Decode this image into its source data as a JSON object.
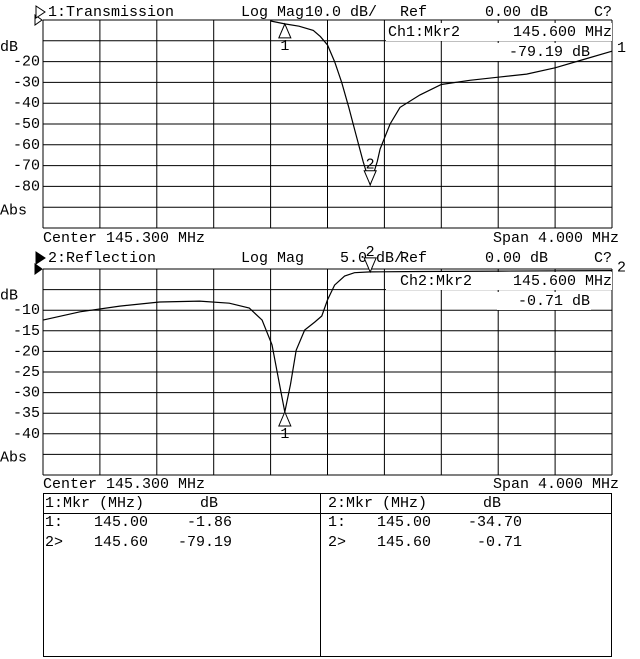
{
  "chart_data": [
    {
      "type": "line",
      "channel_label": "1:Transmission",
      "format": "Log Mag",
      "scale": "10.0 dB/",
      "ref_label": "Ref",
      "ref": "0.00 dB",
      "status": "C?",
      "readout": {
        "name": "Ch1:Mkr2",
        "frequency": "145.600 MHz",
        "value": "-79.19 dB"
      },
      "center_label": "Center 145.300 MHz",
      "span_label": "Span 4.000 MHz",
      "ylabel": "dB",
      "ylabel_bottom": "Abs",
      "xlim": [
        143.3,
        147.3
      ],
      "ylim": [
        -100,
        0
      ],
      "yticks": [
        {
          "value": 0,
          "label": null
        },
        {
          "value": -10,
          "label": null
        },
        -20,
        -30,
        -40,
        -50,
        -60,
        -70,
        -80,
        {
          "value": -90,
          "label": null
        },
        {
          "value": -100,
          "label": null
        }
      ],
      "grid": true,
      "series": [
        {
          "name": "1",
          "color": "#000000",
          "x": [
            144.9,
            145.0,
            145.1,
            145.2,
            145.25,
            145.3,
            145.35,
            145.4,
            145.45,
            145.5,
            145.55,
            145.6,
            145.65,
            145.67,
            145.74,
            145.81,
            145.95,
            146.1,
            146.3,
            146.5,
            146.7,
            146.9,
            147.1,
            147.3
          ],
          "values": [
            -0.5,
            -1.86,
            -3,
            -5,
            -8,
            -12,
            -20,
            -30,
            -42,
            -55,
            -68,
            -79.19,
            -68,
            -62,
            -50,
            -42,
            -36,
            -31,
            -29,
            -27.5,
            -26,
            -23,
            -19,
            -15
          ]
        }
      ],
      "markers": [
        {
          "label": "1",
          "x": 145.0,
          "value": -1.86
        },
        {
          "label": "2",
          "x": 145.6,
          "value": -79.19
        }
      ]
    },
    {
      "type": "line",
      "channel_label": "2:Reflection",
      "format": "Log Mag",
      "scale": "5.0 dB/",
      "ref_label": "Ref",
      "ref": "0.00 dB",
      "status": "C?",
      "readout": {
        "name": "Ch2:Mkr2",
        "frequency": "145.600 MHz",
        "value": "-0.71 dB"
      },
      "center_label": "Center 145.300 MHz",
      "span_label": "Span 4.000 MHz",
      "ylabel": "dB",
      "ylabel_bottom": "Abs",
      "xlim": [
        143.3,
        147.3
      ],
      "ylim": [
        -50,
        0
      ],
      "yticks": [
        {
          "value": 0,
          "label": null
        },
        {
          "value": -5,
          "label": null
        },
        -10,
        -15,
        -20,
        -25,
        -30,
        -35,
        -40,
        {
          "value": -45,
          "label": null
        },
        {
          "value": -50,
          "label": null
        }
      ],
      "grid": true,
      "series": [
        {
          "name": "2",
          "color": "#000000",
          "x": [
            143.3,
            143.56,
            143.84,
            144.12,
            144.4,
            144.61,
            144.75,
            144.84,
            144.91,
            144.97,
            145.0,
            145.04,
            145.08,
            145.14,
            145.21,
            145.26,
            145.3,
            145.35,
            145.42,
            145.49,
            145.6,
            145.95,
            146.51,
            147.3
          ],
          "values": [
            -12.4,
            -10.4,
            -9,
            -8,
            -7.8,
            -8.3,
            -9.5,
            -12.4,
            -18.4,
            -29.4,
            -34.7,
            -28,
            -19.7,
            -14.8,
            -12.9,
            -11.4,
            -7.5,
            -3.9,
            -1.7,
            -0.9,
            -0.71,
            -0.6,
            -0.5,
            -0.4
          ]
        }
      ],
      "markers": [
        {
          "label": "1",
          "x": 145.0,
          "value": -34.7
        },
        {
          "label": "2",
          "x": 145.6,
          "value": -0.71
        }
      ]
    }
  ],
  "marker_tables": [
    {
      "header": [
        "1:Mkr (MHz)",
        "dB"
      ],
      "rows": [
        [
          "1:",
          "145.00",
          "-1.86"
        ],
        [
          "2>",
          "145.60",
          "-79.19"
        ]
      ]
    },
    {
      "header": [
        "2:Mkr (MHz)",
        "dB"
      ],
      "rows": [
        [
          "1:",
          "145.00",
          "-34.70"
        ],
        [
          "2>",
          "145.60",
          "-0.71"
        ]
      ]
    }
  ]
}
